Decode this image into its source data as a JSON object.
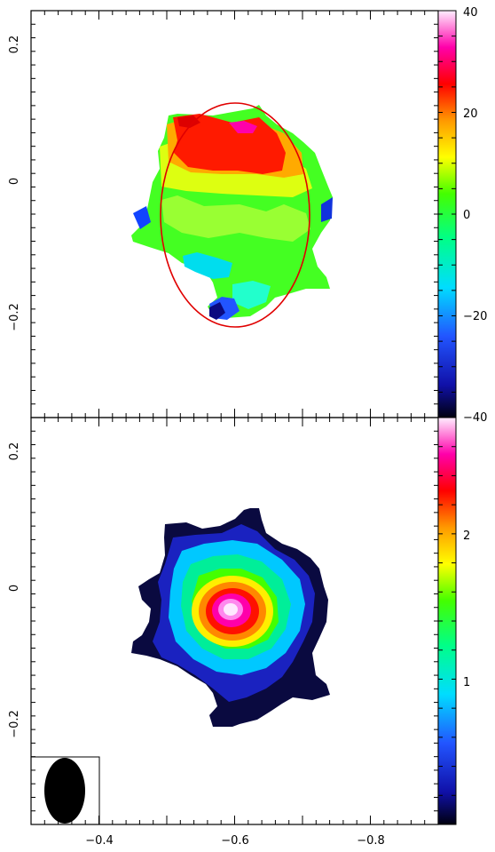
{
  "chart_data": [
    {
      "type": "heatmap",
      "title": "",
      "xlabel": "",
      "ylabel": "",
      "xlim": [
        -0.3,
        -0.9
      ],
      "ylim": [
        -0.35,
        0.25
      ],
      "y_ticks": [
        {
          "value": 0.2,
          "label": "0.2"
        },
        {
          "value": 0.0,
          "label": "0"
        },
        {
          "value": -0.2,
          "label": "−0.2"
        }
      ],
      "colorbar": {
        "range": [
          -40,
          40
        ],
        "ticks": [
          {
            "value": 40,
            "label": "40"
          },
          {
            "value": 20,
            "label": "20"
          },
          {
            "value": 0,
            "label": "0"
          },
          {
            "value": -20,
            "label": "−20"
          },
          {
            "value": -40,
            "label": "−40"
          }
        ]
      },
      "ellipse": {
        "center": [
          -0.6,
          -0.05
        ],
        "semi_axes": [
          0.11,
          0.165
        ],
        "color": "#e00000"
      },
      "regions": [
        {
          "name": "northern red band",
          "center": [
            -0.59,
            0.03
          ],
          "value": 25
        },
        {
          "name": "central green body",
          "center": [
            -0.61,
            -0.06
          ],
          "value": 0
        },
        {
          "name": "southern blue tail",
          "center": [
            -0.55,
            -0.19
          ],
          "value": -30
        }
      ]
    },
    {
      "type": "heatmap",
      "title": "",
      "xlabel": "",
      "ylabel": "",
      "xlim": [
        -0.3,
        -0.9
      ],
      "ylim": [
        -0.35,
        0.25
      ],
      "x_ticks": [
        {
          "value": -0.4,
          "label": "−0.4"
        },
        {
          "value": -0.6,
          "label": "−0.6"
        },
        {
          "value": -0.8,
          "label": "−0.8"
        }
      ],
      "y_ticks": [
        {
          "value": 0.2,
          "label": "0.2"
        },
        {
          "value": 0.0,
          "label": "0"
        },
        {
          "value": -0.2,
          "label": "−0.2"
        }
      ],
      "colorbar": {
        "range": [
          0,
          2.8
        ],
        "ticks": [
          {
            "value": 2,
            "label": "2"
          },
          {
            "value": 1,
            "label": "1"
          }
        ]
      },
      "peak": {
        "center": [
          -0.6,
          -0.03
        ],
        "value": 2.8
      },
      "beam": {
        "center": [
          -0.35,
          -0.3
        ],
        "semi_axes": [
          0.03,
          0.048
        ],
        "color": "#000000"
      }
    }
  ]
}
